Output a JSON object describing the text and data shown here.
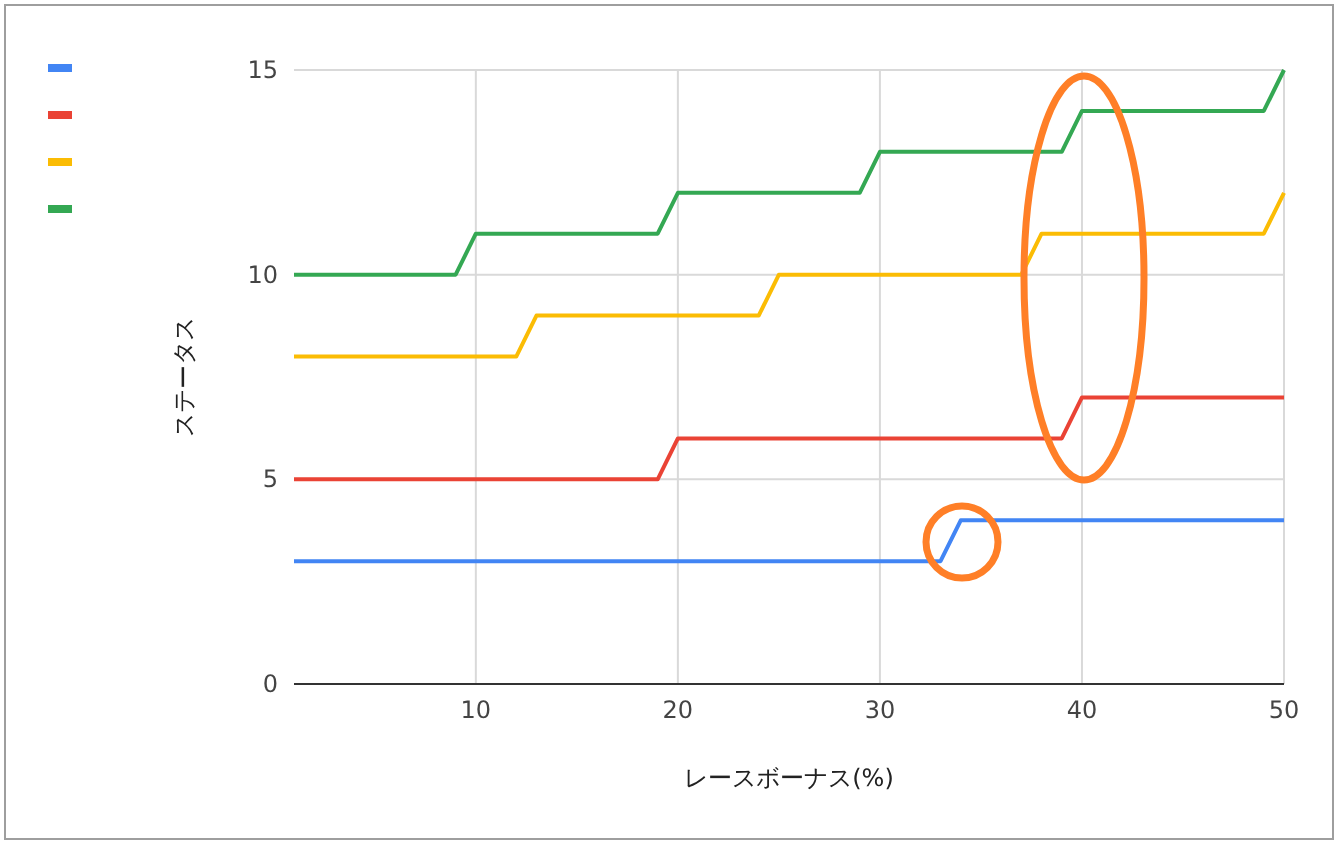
{
  "chart_data": {
    "type": "line",
    "xlabel": "レースボーナス(%)",
    "ylabel": "ステータス",
    "xlim": [
      1,
      50
    ],
    "ylim": [
      0,
      15
    ],
    "xticks": [
      10,
      20,
      30,
      40,
      50
    ],
    "yticks": [
      0,
      5,
      10,
      15
    ],
    "grid": true,
    "marker": "none",
    "line_style": "solid",
    "series": [
      {
        "color": "#4285f4",
        "x": [
          1,
          33,
          34,
          50
        ],
        "values": [
          3,
          3,
          4,
          4
        ]
      },
      {
        "color": "#ea4335",
        "x": [
          1,
          19,
          20,
          39,
          40,
          50
        ],
        "values": [
          5,
          5,
          6,
          6,
          7,
          7
        ]
      },
      {
        "color": "#fbbc04",
        "x": [
          1,
          12,
          13,
          24,
          25,
          37,
          38,
          49,
          50
        ],
        "values": [
          8,
          8,
          9,
          9,
          10,
          10,
          11,
          11,
          12
        ]
      },
      {
        "color": "#34a853",
        "x": [
          1,
          9,
          10,
          19,
          20,
          29,
          30,
          39,
          40,
          49,
          50
        ],
        "values": [
          10,
          10,
          11,
          11,
          12,
          12,
          13,
          13,
          14,
          14,
          15
        ]
      }
    ]
  }
}
